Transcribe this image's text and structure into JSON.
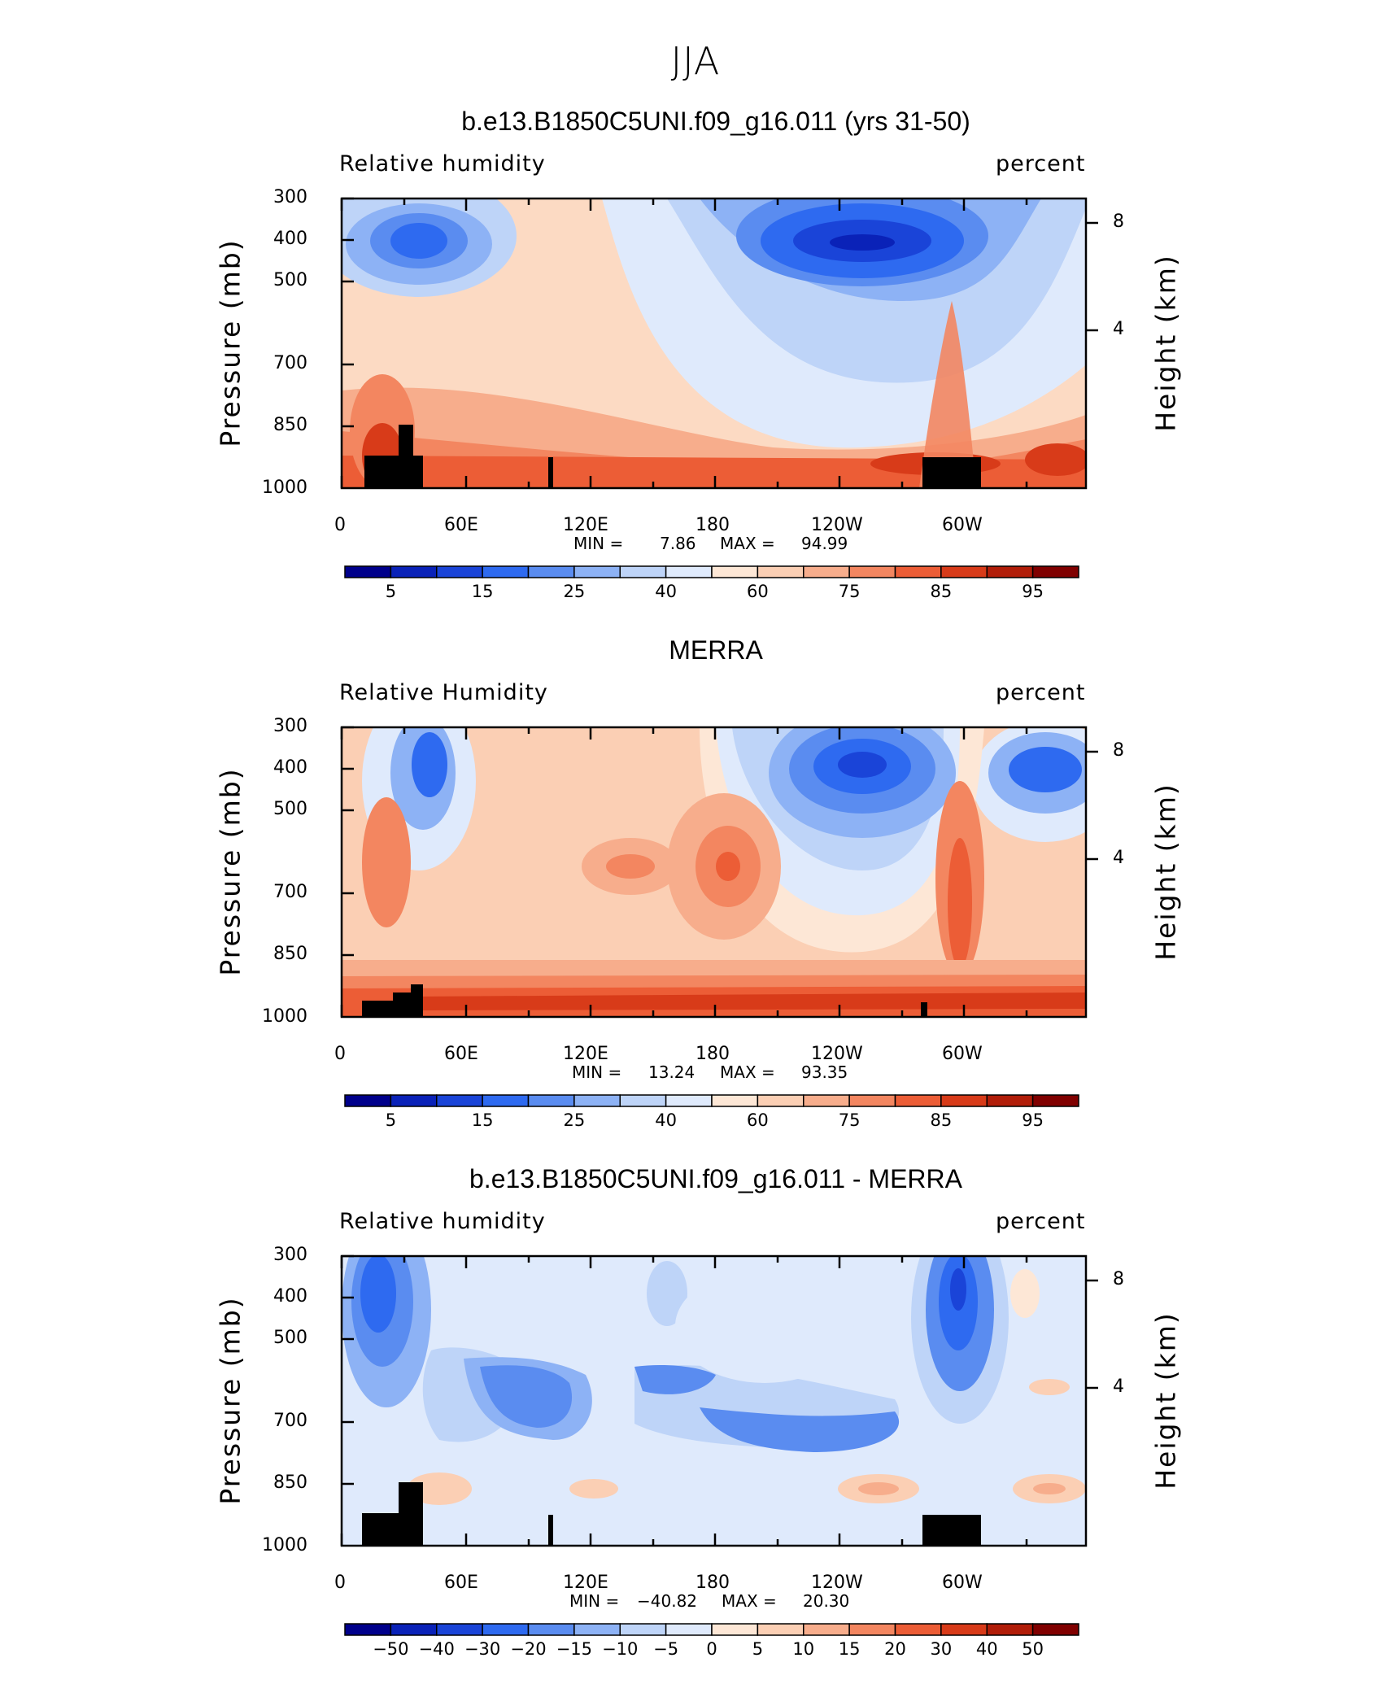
{
  "season": "JJA",
  "panels": [
    {
      "title": "b.e13.B1850C5UNI.f09_g16.011 (yrs 31-50)",
      "left_label": "Relative  humidity",
      "right_label": "percent",
      "ylabel": "Pressure  (mb)",
      "ylabel_right": "Height  (km)",
      "min_label": "MIN =",
      "min_value": "7.86",
      "max_label": "MAX =",
      "max_value": "94.99"
    },
    {
      "title": "MERRA",
      "left_label": "Relative  Humidity",
      "right_label": "percent",
      "ylabel": "Pressure  (mb)",
      "ylabel_right": "Height  (km)",
      "min_label": "MIN =",
      "min_value": "13.24",
      "max_label": "MAX =",
      "max_value": "93.35"
    },
    {
      "title": "b.e13.B1850C5UNI.f09_g16.011 - MERRA",
      "left_label": "Relative  humidity",
      "right_label": "percent",
      "ylabel": "Pressure  (mb)",
      "ylabel_right": "Height  (km)",
      "min_label": "MIN =",
      "min_value": "−40.82",
      "max_label": "MAX =",
      "max_value": "20.30"
    }
  ],
  "chart_data": [
    {
      "type": "heatmap",
      "title": "b.e13.B1850C5UNI.f09_g16.011 (yrs 31-50)",
      "xlabel": "",
      "ylabel": "Pressure  (mb)",
      "ylabel_right": "Height  (km)",
      "x_ticks": [
        "0",
        "60E",
        "120E",
        "180",
        "120W",
        "60W"
      ],
      "y_ticks": [
        "300",
        "400",
        "500",
        "700",
        "850",
        "1000"
      ],
      "y_ticks_right": [
        "8",
        "4"
      ],
      "colorbar_labels": [
        "5",
        "15",
        "25",
        "40",
        "60",
        "75",
        "85",
        "95"
      ],
      "colorbar_colors": [
        "#00008b",
        "#0a22b8",
        "#1a44d8",
        "#2e6af0",
        "#5a8cf0",
        "#8db2f5",
        "#bed4f8",
        "#dfeafc",
        "#fde7d6",
        "#fbcfb4",
        "#f7ad8c",
        "#f38660",
        "#ec5d36",
        "#d83b19",
        "#b11d09",
        "#800000"
      ],
      "min": 7.86,
      "max": 94.99
    },
    {
      "type": "heatmap",
      "title": "MERRA",
      "xlabel": "",
      "ylabel": "Pressure  (mb)",
      "ylabel_right": "Height  (km)",
      "x_ticks": [
        "0",
        "60E",
        "120E",
        "180",
        "120W",
        "60W"
      ],
      "y_ticks": [
        "300",
        "400",
        "500",
        "700",
        "850",
        "1000"
      ],
      "y_ticks_right": [
        "8",
        "4"
      ],
      "colorbar_labels": [
        "5",
        "15",
        "25",
        "40",
        "60",
        "75",
        "85",
        "95"
      ],
      "colorbar_colors": [
        "#00008b",
        "#0a22b8",
        "#1a44d8",
        "#2e6af0",
        "#5a8cf0",
        "#8db2f5",
        "#bed4f8",
        "#dfeafc",
        "#fde7d6",
        "#fbcfb4",
        "#f7ad8c",
        "#f38660",
        "#ec5d36",
        "#d83b19",
        "#b11d09",
        "#800000"
      ],
      "min": 13.24,
      "max": 93.35
    },
    {
      "type": "heatmap",
      "title": "b.e13.B1850C5UNI.f09_g16.011 - MERRA",
      "xlabel": "",
      "ylabel": "Pressure  (mb)",
      "ylabel_right": "Height  (km)",
      "x_ticks": [
        "0",
        "60E",
        "120E",
        "180",
        "120W",
        "60W"
      ],
      "y_ticks": [
        "300",
        "400",
        "500",
        "700",
        "850",
        "1000"
      ],
      "y_ticks_right": [
        "8",
        "4"
      ],
      "colorbar_labels": [
        "−50",
        "−40",
        "−30",
        "−20",
        "−15",
        "−10",
        "−5",
        "0",
        "5",
        "10",
        "15",
        "20",
        "30",
        "40",
        "50"
      ],
      "colorbar_colors": [
        "#00008b",
        "#0a22b8",
        "#1a44d8",
        "#2e6af0",
        "#5a8cf0",
        "#8db2f5",
        "#bed4f8",
        "#dfeafc",
        "#fde7d6",
        "#fbcfb4",
        "#f7ad8c",
        "#f38660",
        "#ec5d36",
        "#d83b19",
        "#b11d09",
        "#800000"
      ],
      "min": -40.82,
      "max": 20.3
    }
  ]
}
